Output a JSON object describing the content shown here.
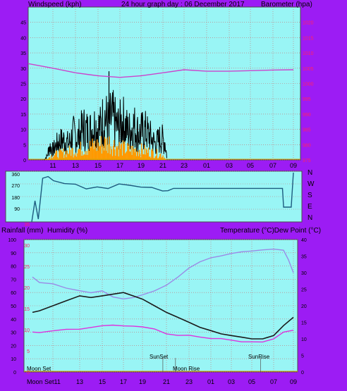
{
  "header": {
    "left_label": "Windspeed (kph)",
    "center_label": "24 hour graph day : 06 December 2017",
    "right_label": "Barometer (hpa)"
  },
  "bottom_header": {
    "left_label_1": "Rainfall (mm)",
    "left_label_2": "Humidity (%)",
    "right_label": "Temperature (°C)Dew Point (°C)"
  },
  "colors": {
    "frame": "#9c1cf4",
    "plot_bg": "#99f5f5",
    "grid": "#cc6a6a",
    "wind_speed": "#000000",
    "wind_gust": "#ff9900",
    "barometer": "#cc44cc",
    "direction": "#1d5b7f",
    "temperature": "#1a1a1a",
    "humidity": "#9a8ae6",
    "dew_point": "#dd33dd",
    "rain_axis": "#ff2266",
    "axis_text": "#000000"
  },
  "time_ticks": [
    "11",
    "13",
    "15",
    "17",
    "19",
    "21",
    "23",
    "01",
    "03",
    "05",
    "07",
    "09"
  ],
  "bottom_time_ticks": [
    "Moon Set11",
    "13",
    "15",
    "17",
    "19",
    "21",
    "23",
    "01",
    "03",
    "05",
    "07",
    "09"
  ],
  "direction_labels": [
    "N",
    "W",
    "S",
    "E",
    "N"
  ],
  "direction_axis": [
    "360",
    "270",
    "180",
    "90"
  ],
  "annotations": {
    "moon_set": "Moon Set",
    "sunset": "SunSet",
    "moon_rise": "Moon Rise",
    "sunrise": "SunRise"
  },
  "chart_data": [
    {
      "type": "line",
      "name": "windspeed-barometer",
      "x_ticks": [
        "11",
        "13",
        "15",
        "17",
        "19",
        "21",
        "23",
        "01",
        "03",
        "05",
        "07",
        "09"
      ],
      "y_left": {
        "label": "Windspeed (kph)",
        "range": [
          0,
          50
        ],
        "ticks": [
          0,
          5,
          10,
          15,
          20,
          25,
          30,
          35,
          40,
          45
        ]
      },
      "y_right": {
        "label": "Barometer (hpa)",
        "range": [
          975,
          1025
        ],
        "ticks": [
          975,
          980,
          985,
          990,
          995,
          1000,
          1005,
          1010,
          1015,
          1020
        ]
      },
      "grid": true,
      "wind_speed_envelope": [
        {
          "x": 10.2,
          "y": 0
        },
        {
          "x": 10.5,
          "y": 2
        },
        {
          "x": 10.7,
          "y": 7
        },
        {
          "x": 11.0,
          "y": 5
        },
        {
          "x": 11.5,
          "y": 9
        },
        {
          "x": 12.0,
          "y": 10
        },
        {
          "x": 12.4,
          "y": 8
        },
        {
          "x": 12.8,
          "y": 13
        },
        {
          "x": 13.2,
          "y": 11
        },
        {
          "x": 13.7,
          "y": 16
        },
        {
          "x": 14.2,
          "y": 14
        },
        {
          "x": 14.7,
          "y": 17
        },
        {
          "x": 15.2,
          "y": 16
        },
        {
          "x": 15.6,
          "y": 22
        },
        {
          "x": 15.9,
          "y": 18
        },
        {
          "x": 16.3,
          "y": 21
        },
        {
          "x": 16.8,
          "y": 16
        },
        {
          "x": 17.3,
          "y": 19
        },
        {
          "x": 17.8,
          "y": 14
        },
        {
          "x": 18.3,
          "y": 17
        },
        {
          "x": 18.8,
          "y": 13
        },
        {
          "x": 19.3,
          "y": 15
        },
        {
          "x": 19.8,
          "y": 12
        },
        {
          "x": 20.3,
          "y": 8
        },
        {
          "x": 20.8,
          "y": 11
        },
        {
          "x": 21.2,
          "y": 9
        },
        {
          "x": 21.4,
          "y": 0
        }
      ],
      "wind_speed_peak": {
        "x": 16.0,
        "y": 29
      },
      "wind_gust_envelope": [
        {
          "x": 10.3,
          "y": 0
        },
        {
          "x": 11.0,
          "y": 2
        },
        {
          "x": 12.0,
          "y": 3
        },
        {
          "x": 13.0,
          "y": 4
        },
        {
          "x": 14.0,
          "y": 5
        },
        {
          "x": 15.0,
          "y": 6
        },
        {
          "x": 16.0,
          "y": 7
        },
        {
          "x": 17.0,
          "y": 5
        },
        {
          "x": 18.0,
          "y": 4
        },
        {
          "x": 19.0,
          "y": 4
        },
        {
          "x": 20.0,
          "y": 3
        },
        {
          "x": 21.0,
          "y": 2
        },
        {
          "x": 21.3,
          "y": 0
        }
      ],
      "barometer_hpa": [
        {
          "x": 9.0,
          "y": 1006.5
        },
        {
          "x": 11.0,
          "y": 1005.0
        },
        {
          "x": 13.0,
          "y": 1003.5
        },
        {
          "x": 15.0,
          "y": 1002.5
        },
        {
          "x": 17.0,
          "y": 1002.0
        },
        {
          "x": 19.0,
          "y": 1002.5
        },
        {
          "x": 21.0,
          "y": 1003.5
        },
        {
          "x": 23.0,
          "y": 1004.5
        },
        {
          "x": 25.0,
          "y": 1004.0
        },
        {
          "x": 27.0,
          "y": 1004.0
        },
        {
          "x": 29.0,
          "y": 1004.2
        },
        {
          "x": 31.0,
          "y": 1004.4
        },
        {
          "x": 33.0,
          "y": 1004.5
        }
      ]
    },
    {
      "type": "line",
      "name": "wind-direction",
      "y_range": [
        0,
        360
      ],
      "y_ticks": [
        90,
        180,
        270,
        360
      ],
      "direction_deg": [
        {
          "x": 9.0,
          "y": 0
        },
        {
          "x": 9.3,
          "y": 150
        },
        {
          "x": 9.6,
          "y": 20
        },
        {
          "x": 10.0,
          "y": 310
        },
        {
          "x": 10.5,
          "y": 330
        },
        {
          "x": 11.0,
          "y": 300
        },
        {
          "x": 12.0,
          "y": 290
        },
        {
          "x": 13.0,
          "y": 260
        },
        {
          "x": 14.0,
          "y": 250
        },
        {
          "x": 15.0,
          "y": 255
        },
        {
          "x": 16.0,
          "y": 245
        },
        {
          "x": 17.0,
          "y": 250
        },
        {
          "x": 18.0,
          "y": 245
        },
        {
          "x": 19.0,
          "y": 240
        },
        {
          "x": 20.0,
          "y": 245
        },
        {
          "x": 21.0,
          "y": 230
        },
        {
          "x": 21.5,
          "y": 225
        },
        {
          "x": 22.0,
          "y": 238
        },
        {
          "x": 24.0,
          "y": 238
        },
        {
          "x": 26.0,
          "y": 238
        },
        {
          "x": 28.0,
          "y": 238
        },
        {
          "x": 30.0,
          "y": 238
        },
        {
          "x": 32.0,
          "y": 238
        },
        {
          "x": 32.1,
          "y": 105
        },
        {
          "x": 32.8,
          "y": 105
        },
        {
          "x": 33.0,
          "y": 350
        }
      ]
    },
    {
      "type": "line",
      "name": "rain-humidity-temperature",
      "x_ticks": [
        "11",
        "13",
        "15",
        "17",
        "19",
        "21",
        "23",
        "01",
        "03",
        "05",
        "07",
        "09"
      ],
      "y_left": {
        "label": "Humidity (%)",
        "range": [
          0,
          100
        ],
        "ticks": [
          0,
          10,
          20,
          30,
          40,
          50,
          60,
          70,
          80,
          90,
          100
        ]
      },
      "y_rain": {
        "label": "Rainfall (mm)",
        "ticks": [
          0,
          5,
          10,
          15,
          20,
          25,
          30,
          35
        ]
      },
      "y_right": {
        "label": "Temperature (°C)",
        "range": [
          0,
          40
        ],
        "ticks": [
          0,
          5,
          10,
          15,
          20,
          25,
          30,
          35,
          40
        ]
      },
      "humidity_pct": [
        {
          "x": 9.0,
          "y": 72
        },
        {
          "x": 10.0,
          "y": 68
        },
        {
          "x": 11.0,
          "y": 67
        },
        {
          "x": 12.0,
          "y": 63
        },
        {
          "x": 13.0,
          "y": 61
        },
        {
          "x": 14.0,
          "y": 60
        },
        {
          "x": 15.0,
          "y": 61
        },
        {
          "x": 16.0,
          "y": 57
        },
        {
          "x": 17.0,
          "y": 55
        },
        {
          "x": 18.0,
          "y": 56
        },
        {
          "x": 19.0,
          "y": 58
        },
        {
          "x": 20.0,
          "y": 61
        },
        {
          "x": 21.0,
          "y": 66
        },
        {
          "x": 22.0,
          "y": 72
        },
        {
          "x": 23.0,
          "y": 78
        },
        {
          "x": 24.0,
          "y": 83
        },
        {
          "x": 25.0,
          "y": 86
        },
        {
          "x": 26.0,
          "y": 88
        },
        {
          "x": 27.0,
          "y": 90
        },
        {
          "x": 28.0,
          "y": 91
        },
        {
          "x": 29.0,
          "y": 91
        },
        {
          "x": 30.0,
          "y": 92
        },
        {
          "x": 31.0,
          "y": 93
        },
        {
          "x": 32.0,
          "y": 92
        },
        {
          "x": 32.5,
          "y": 85
        },
        {
          "x": 33.0,
          "y": 75
        }
      ],
      "temperature_c": [
        {
          "x": 9.0,
          "y": 18
        },
        {
          "x": 10.0,
          "y": 18.5
        },
        {
          "x": 11.0,
          "y": 20
        },
        {
          "x": 12.0,
          "y": 21.5
        },
        {
          "x": 13.0,
          "y": 23
        },
        {
          "x": 14.0,
          "y": 22.5
        },
        {
          "x": 15.0,
          "y": 23
        },
        {
          "x": 16.0,
          "y": 23.5
        },
        {
          "x": 17.0,
          "y": 24
        },
        {
          "x": 18.0,
          "y": 23
        },
        {
          "x": 19.0,
          "y": 22
        },
        {
          "x": 20.0,
          "y": 20
        },
        {
          "x": 21.0,
          "y": 18
        },
        {
          "x": 22.0,
          "y": 16.5
        },
        {
          "x": 23.0,
          "y": 15
        },
        {
          "x": 24.0,
          "y": 13.5
        },
        {
          "x": 25.0,
          "y": 12.5
        },
        {
          "x": 26.0,
          "y": 11.5
        },
        {
          "x": 27.0,
          "y": 11
        },
        {
          "x": 28.0,
          "y": 10.5
        },
        {
          "x": 29.0,
          "y": 10
        },
        {
          "x": 30.0,
          "y": 10
        },
        {
          "x": 31.0,
          "y": 11
        },
        {
          "x": 32.0,
          "y": 14
        },
        {
          "x": 33.0,
          "y": 16.5
        }
      ],
      "dew_point_c": [
        {
          "x": 9.0,
          "y": 12
        },
        {
          "x": 10.0,
          "y": 12
        },
        {
          "x": 11.0,
          "y": 12.5
        },
        {
          "x": 12.0,
          "y": 13
        },
        {
          "x": 13.0,
          "y": 13
        },
        {
          "x": 14.0,
          "y": 13.5
        },
        {
          "x": 15.0,
          "y": 14
        },
        {
          "x": 16.0,
          "y": 14
        },
        {
          "x": 17.0,
          "y": 14
        },
        {
          "x": 18.0,
          "y": 14
        },
        {
          "x": 19.0,
          "y": 13.5
        },
        {
          "x": 20.0,
          "y": 13
        },
        {
          "x": 21.0,
          "y": 11.5
        },
        {
          "x": 22.0,
          "y": 11
        },
        {
          "x": 23.0,
          "y": 11
        },
        {
          "x": 24.0,
          "y": 10.5
        },
        {
          "x": 25.0,
          "y": 10
        },
        {
          "x": 26.0,
          "y": 10
        },
        {
          "x": 27.0,
          "y": 9.5
        },
        {
          "x": 28.0,
          "y": 9
        },
        {
          "x": 29.0,
          "y": 9
        },
        {
          "x": 30.0,
          "y": 9
        },
        {
          "x": 31.0,
          "y": 10
        },
        {
          "x": 32.0,
          "y": 12
        },
        {
          "x": 33.0,
          "y": 12.5
        }
      ],
      "events": [
        {
          "label": "SunSet",
          "x": 20.7
        },
        {
          "label": "Moon Rise",
          "x": 21.8
        },
        {
          "label": "SunRise",
          "x": 29.8
        }
      ]
    }
  ]
}
